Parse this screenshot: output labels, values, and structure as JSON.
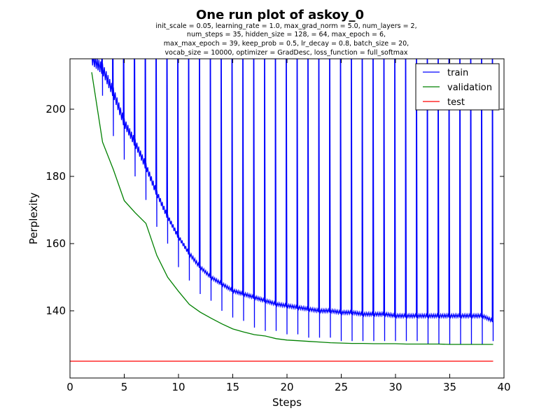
{
  "chart_data": {
    "type": "line",
    "title": "One run plot of askoy_0",
    "subtitle_lines": [
      "init_scale = 0.05, learning_rate = 1.0, max_grad_norm = 5.0, num_layers = 2,",
      "num_steps = 35, hidden_size = 128,    = 64, max_epoch = 6,",
      "max_max_epoch = 39, keep_prob = 0.5, lr_decay = 0.8, batch_size = 20,",
      "vocab_size = 10000, optimizer = GradDesc, loss_function = full_softmax"
    ],
    "xlabel": "Steps",
    "ylabel": "Perplexity",
    "xlim": [
      0,
      40
    ],
    "ylim": [
      120,
      215
    ],
    "xticks": [
      0,
      5,
      10,
      15,
      20,
      25,
      30,
      35,
      40
    ],
    "yticks": [
      140,
      160,
      180,
      200
    ],
    "legend_position": "top-right",
    "series": [
      {
        "name": "train",
        "color": "#0000ff",
        "values_description": "sawtooth per epoch",
        "min_envelope": [
          [
            3,
            204
          ],
          [
            4,
            192
          ],
          [
            5,
            185
          ],
          [
            6,
            180
          ],
          [
            7,
            173
          ],
          [
            8,
            165
          ],
          [
            9,
            160
          ],
          [
            10,
            153
          ],
          [
            11,
            149
          ],
          [
            12,
            145
          ],
          [
            13,
            143
          ],
          [
            14,
            140
          ],
          [
            15,
            138
          ],
          [
            16,
            137
          ],
          [
            17,
            135
          ],
          [
            18,
            134
          ],
          [
            19,
            134
          ],
          [
            20,
            133
          ],
          [
            21,
            133
          ],
          [
            22,
            132
          ],
          [
            23,
            132
          ],
          [
            24,
            132
          ],
          [
            25,
            131
          ],
          [
            26,
            131
          ],
          [
            27,
            131
          ],
          [
            28,
            131
          ],
          [
            29,
            131
          ],
          [
            30,
            131
          ],
          [
            31,
            131
          ],
          [
            32,
            131
          ],
          [
            33,
            130
          ],
          [
            34,
            130
          ],
          [
            35,
            130
          ],
          [
            36,
            130
          ],
          [
            37,
            130
          ],
          [
            38,
            130
          ]
        ],
        "epoch_trend": [
          [
            2,
            215
          ],
          [
            3,
            212
          ],
          [
            4,
            205
          ],
          [
            5,
            196
          ],
          [
            6,
            190
          ],
          [
            7,
            183
          ],
          [
            8,
            175
          ],
          [
            9,
            168
          ],
          [
            10,
            162
          ],
          [
            11,
            157
          ],
          [
            12,
            153
          ],
          [
            13,
            150
          ],
          [
            14,
            148
          ],
          [
            15,
            146
          ],
          [
            16,
            145
          ],
          [
            17,
            144
          ],
          [
            18,
            143
          ],
          [
            19,
            142
          ],
          [
            20,
            141.5
          ],
          [
            21,
            141
          ],
          [
            22,
            140.5
          ],
          [
            23,
            140
          ],
          [
            24,
            140
          ],
          [
            25,
            139.5
          ],
          [
            26,
            139.5
          ],
          [
            27,
            139
          ],
          [
            28,
            139
          ],
          [
            29,
            139
          ],
          [
            30,
            138.5
          ],
          [
            31,
            138.5
          ],
          [
            32,
            138.5
          ],
          [
            33,
            138.5
          ],
          [
            34,
            138.5
          ],
          [
            35,
            138.5
          ],
          [
            36,
            138.5
          ],
          [
            37,
            138.5
          ],
          [
            38,
            138.5
          ],
          [
            39,
            137
          ]
        ]
      },
      {
        "name": "validation",
        "color": "#008000",
        "x": [
          2,
          3,
          4,
          5,
          6,
          7,
          8,
          9,
          10,
          11,
          12,
          13,
          14,
          15,
          16,
          17,
          18,
          19,
          20,
          21,
          22,
          23,
          24,
          25,
          26,
          27,
          28,
          29,
          30,
          31,
          32,
          33,
          34,
          35,
          36,
          37,
          38,
          39
        ],
        "values": [
          211,
          190.2,
          182,
          172.8,
          169.2,
          166,
          156.5,
          150,
          145.8,
          141.9,
          139.6,
          137.8,
          136.1,
          134.6,
          133.7,
          132.9,
          132.5,
          131.7,
          131.3,
          131.1,
          130.9,
          130.7,
          130.5,
          130.4,
          130.3,
          130.3,
          130.2,
          130.2,
          130.2,
          130.1,
          130.1,
          130.1,
          130.1,
          130.0,
          130.0,
          130.0,
          130.0,
          130.0
        ]
      },
      {
        "name": "test",
        "color": "#ff0000",
        "x": [
          0,
          39
        ],
        "values": [
          125,
          125
        ]
      }
    ]
  }
}
